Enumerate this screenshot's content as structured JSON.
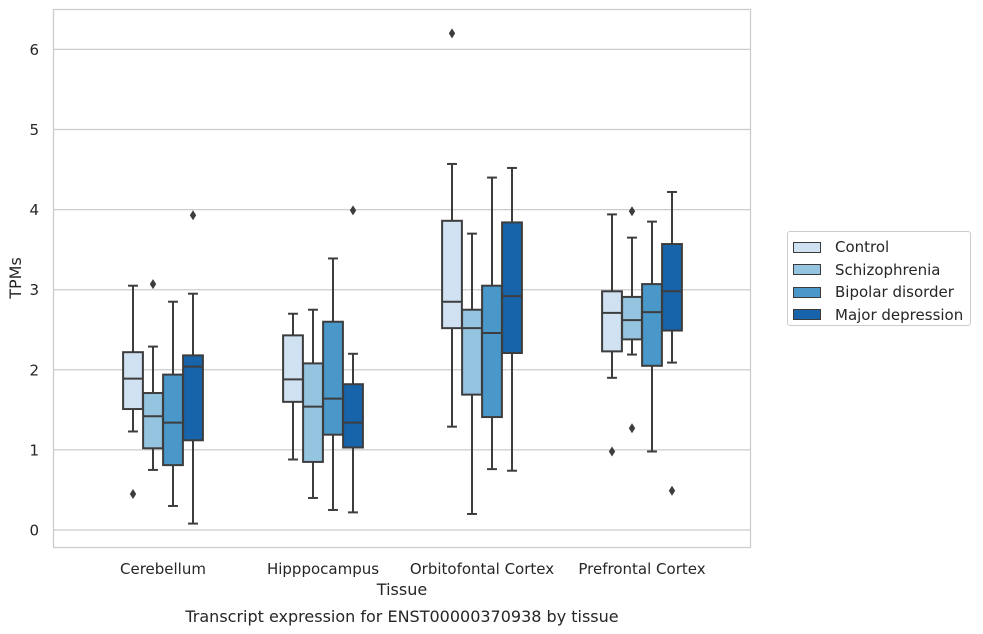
{
  "chart_data": {
    "type": "box",
    "title": "Transcript expression for ENST00000370938 by tissue",
    "xlabel": "Tissue",
    "ylabel": "TPMs",
    "ylim": [
      -0.22,
      6.5
    ],
    "yticks": [
      0,
      1,
      2,
      3,
      4,
      5,
      6
    ],
    "grid": true,
    "legend_position": "right",
    "categories": [
      "Cerebellum",
      "Hipppocampus",
      "Orbitofontal Cortex",
      "Prefrontal Cortex"
    ],
    "series": [
      {
        "name": "Control",
        "color": "#d0e1f2",
        "boxes": [
          {
            "whislo": 1.23,
            "q1": 1.51,
            "med": 1.89,
            "q3": 2.22,
            "whishi": 3.05,
            "fliers": [
              0.45
            ]
          },
          {
            "whislo": 0.88,
            "q1": 1.6,
            "med": 1.88,
            "q3": 2.43,
            "whishi": 2.7,
            "fliers": []
          },
          {
            "whislo": 1.29,
            "q1": 2.52,
            "med": 2.85,
            "q3": 3.86,
            "whishi": 4.57,
            "fliers": [
              6.2
            ]
          },
          {
            "whislo": 1.9,
            "q1": 2.23,
            "med": 2.71,
            "q3": 2.98,
            "whishi": 3.94,
            "fliers": [
              0.98
            ]
          }
        ]
      },
      {
        "name": "Schizophrenia",
        "color": "#94c4df",
        "boxes": [
          {
            "whislo": 0.75,
            "q1": 1.02,
            "med": 1.42,
            "q3": 1.71,
            "whishi": 2.29,
            "fliers": [
              3.07
            ]
          },
          {
            "whislo": 0.4,
            "q1": 0.85,
            "med": 1.54,
            "q3": 2.08,
            "whishi": 2.75,
            "fliers": []
          },
          {
            "whislo": 0.2,
            "q1": 1.69,
            "med": 2.52,
            "q3": 2.75,
            "whishi": 3.7,
            "fliers": []
          },
          {
            "whislo": 2.19,
            "q1": 2.38,
            "med": 2.62,
            "q3": 2.91,
            "whishi": 3.65,
            "fliers": [
              1.27,
              3.98
            ]
          }
        ]
      },
      {
        "name": "Bipolar disorder",
        "color": "#4a98c9",
        "boxes": [
          {
            "whislo": 0.3,
            "q1": 0.81,
            "med": 1.34,
            "q3": 1.94,
            "whishi": 2.85,
            "fliers": []
          },
          {
            "whislo": 0.25,
            "q1": 1.19,
            "med": 1.64,
            "q3": 2.6,
            "whishi": 3.39,
            "fliers": []
          },
          {
            "whislo": 0.76,
            "q1": 1.41,
            "med": 2.46,
            "q3": 3.05,
            "whishi": 4.4,
            "fliers": []
          },
          {
            "whislo": 0.98,
            "q1": 2.05,
            "med": 2.72,
            "q3": 3.07,
            "whishi": 3.85,
            "fliers": []
          }
        ]
      },
      {
        "name": "Major depression",
        "color": "#1764ab",
        "boxes": [
          {
            "whislo": 0.08,
            "q1": 1.12,
            "med": 2.04,
            "q3": 2.18,
            "whishi": 2.95,
            "fliers": [
              3.93
            ]
          },
          {
            "whislo": 0.22,
            "q1": 1.03,
            "med": 1.34,
            "q3": 1.82,
            "whishi": 2.2,
            "fliers": [
              3.99
            ]
          },
          {
            "whislo": 0.74,
            "q1": 2.21,
            "med": 2.92,
            "q3": 3.84,
            "whishi": 4.52,
            "fliers": []
          },
          {
            "whislo": 2.09,
            "q1": 2.49,
            "med": 2.98,
            "q3": 3.57,
            "whishi": 4.22,
            "fliers": [
              0.49
            ]
          }
        ]
      }
    ]
  }
}
